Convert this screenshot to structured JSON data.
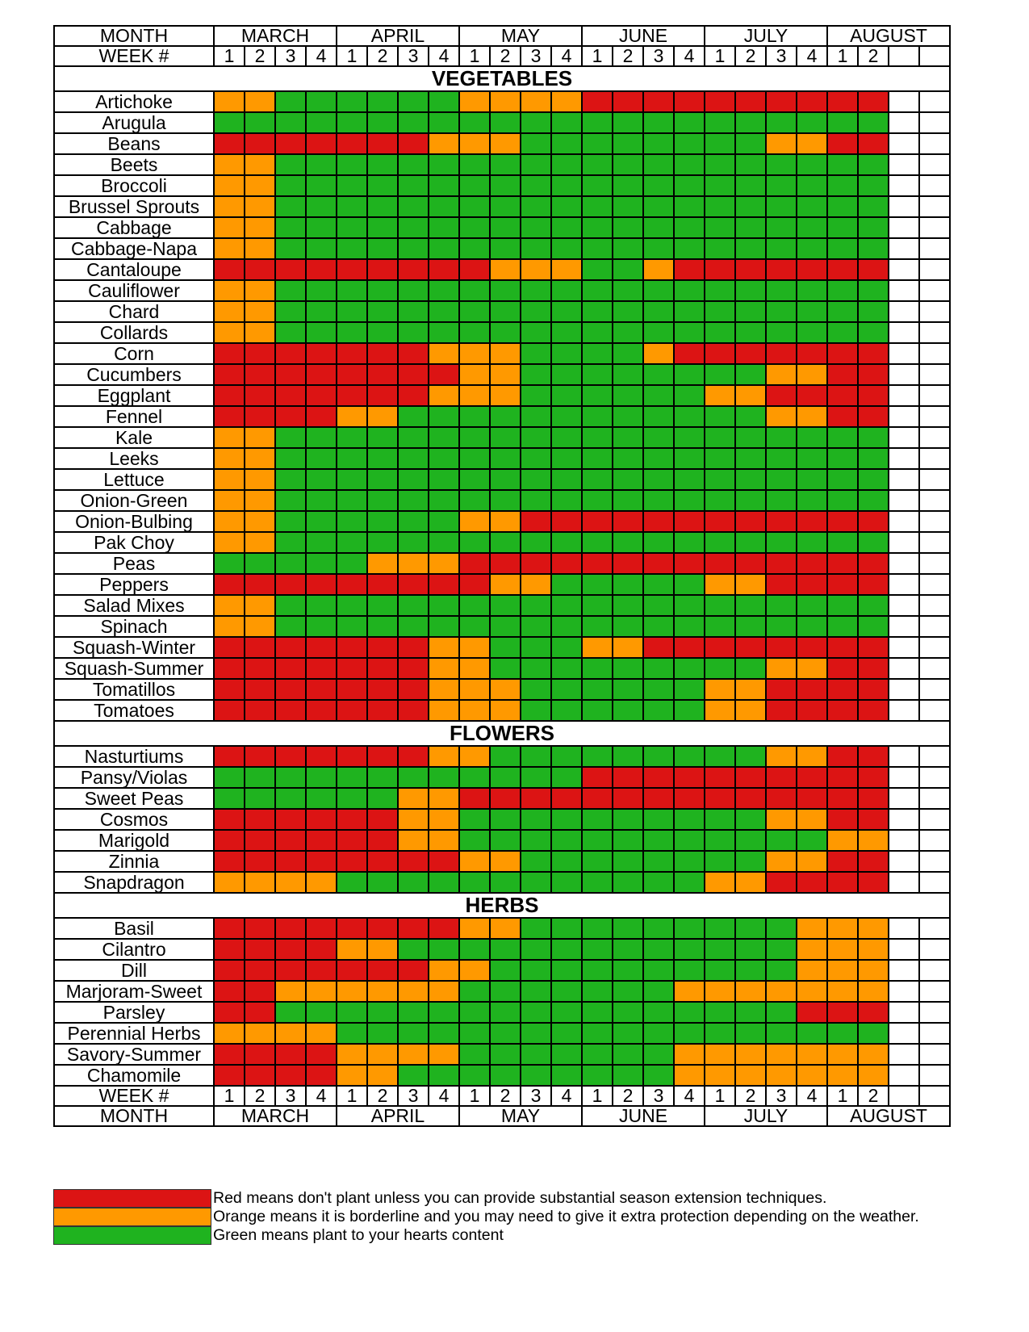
{
  "header": {
    "month_label": "MONTH",
    "week_label": "WEEK #",
    "months": [
      "MARCH",
      "APRIL",
      "MAY",
      "JUNE",
      "JULY",
      "AUGUST"
    ],
    "month_spans": [
      4,
      4,
      4,
      4,
      4,
      4
    ],
    "weeks": [
      "1",
      "2",
      "3",
      "4",
      "1",
      "2",
      "3",
      "4",
      "1",
      "2",
      "3",
      "4",
      "1",
      "2",
      "3",
      "4",
      "1",
      "2",
      "3",
      "4",
      "1",
      "2",
      "",
      ""
    ]
  },
  "colors": {
    "R": "#dc1414",
    "O": "#ff9900",
    "G": "#1fb31f",
    "W": "#ffffff"
  },
  "sections": [
    {
      "title": "VEGETABLES",
      "rows": [
        {
          "name": "Artichoke",
          "cells": "OOGGGGGGOOOORRRRRRRRRRWW"
        },
        {
          "name": "Arugula",
          "cells": "GGGGGGGGGGGGGGGGGGGGGGWW"
        },
        {
          "name": "Beans",
          "cells": "RRRRRRROOOGGGGGGGGOORRWW"
        },
        {
          "name": "Beets",
          "cells": "OOGGGGGGGGGGGGGGGGGGGGWW"
        },
        {
          "name": "Broccoli",
          "cells": "OOGGGGGGGGGGGGGGGGGGGGWW"
        },
        {
          "name": "Brussel Sprouts",
          "cells": "OOGGGGGGGGGGGGGGGGGGGGWW"
        },
        {
          "name": "Cabbage",
          "cells": "OOGGGGGGGGGGGGGGGGGGGGWW"
        },
        {
          "name": "Cabbage-Napa",
          "cells": "OOGGGGGGGGGGGGGGGGGGGGWW"
        },
        {
          "name": "Cantaloupe",
          "cells": "RRRRRRRRROOOGGORRRRRRRWW"
        },
        {
          "name": "Cauliflower",
          "cells": "OOGGGGGGGGGGGGGGGGGGGGWW"
        },
        {
          "name": "Chard",
          "cells": "OOGGGGGGGGGGGGGGGGGGGGWW"
        },
        {
          "name": "Collards",
          "cells": "OOGGGGGGGGGGGGGGGGGGGGWW"
        },
        {
          "name": "Corn",
          "cells": "RRRRRRROOOGGGGORRRRRRRWW"
        },
        {
          "name": "Cucumbers",
          "cells": "RRRRRRRROOGGGGGGGGOORRWW"
        },
        {
          "name": "Eggplant",
          "cells": "RRRRRRROOOGGGGGGOORRRRWW"
        },
        {
          "name": "Fennel",
          "cells": "RRRROOGGGGGGGGGGGGOORRWW"
        },
        {
          "name": "Kale",
          "cells": "OOGGGGGGGGGGGGGGGGGGGGWW"
        },
        {
          "name": "Leeks",
          "cells": "OOGGGGGGGGGGGGGGGGGGGGWW"
        },
        {
          "name": "Lettuce",
          "cells": "OOGGGGGGGGGGGGGGGGGGGGWW"
        },
        {
          "name": "Onion-Green",
          "cells": "OOGGGGGGGGGGGGGGGGGGGGWW"
        },
        {
          "name": "Onion-Bulbing",
          "cells": "OOGGGGGGOORRRRRRRRRRRRWW"
        },
        {
          "name": "Pak Choy",
          "cells": "OOGGGGGGGGGGGGGGGGGGGGWW"
        },
        {
          "name": "Peas",
          "cells": "GGGGGOOORRRRRRRRRRRRRRWW"
        },
        {
          "name": "Peppers",
          "cells": "RRRRRRRRROOGGGGGOORRRRWW"
        },
        {
          "name": "Salad Mixes",
          "cells": "OOGGGGGGGGGGGGGGGGGGGGWW"
        },
        {
          "name": "Spinach",
          "cells": "OOGGGGGGGGGGGGGGGGGGGGWW"
        },
        {
          "name": "Squash-Winter",
          "cells": "RRRRRRROOGGGOORRRRRRRRWW"
        },
        {
          "name": "Squash-Summer",
          "cells": "RRRRRRROOGGGGGGGGGOORRWW"
        },
        {
          "name": "Tomatillos",
          "cells": "RRRRRRROOOGGGGGGOORRRRWW"
        },
        {
          "name": "Tomatoes",
          "cells": "RRRRRRROOOGGGGGGOORRRRWW"
        }
      ]
    },
    {
      "title": "FLOWERS",
      "rows": [
        {
          "name": "Nasturtiums",
          "cells": "RRRRRRROOGGGGGGGGGOORRWW"
        },
        {
          "name": "Pansy/Violas",
          "cells": "GGGGGGGGGGGGRRRRRRRRRRWW"
        },
        {
          "name": "Sweet Peas",
          "cells": "GGGGGGOORRRRRRRRRRRRRRWW"
        },
        {
          "name": "Cosmos",
          "cells": "RRRRRROOGGGGGGGGGGOORRWW"
        },
        {
          "name": "Marigold",
          "cells": "RRRRRROOGGGGGGGGGGGGOOWW"
        },
        {
          "name": "Zinnia",
          "cells": "RRRRRRRROOGGGGGGGGOORRWW"
        },
        {
          "name": "Snapdragon",
          "cells": "OOOOGGGGGGGGGGGGOORRRRWW"
        }
      ]
    },
    {
      "title": "HERBS",
      "rows": [
        {
          "name": "Basil",
          "cells": "RRRRRRRROOGGGGGGGGGOOOWW"
        },
        {
          "name": "Cilantro",
          "cells": "RRRROOGGGGGGGGGGGGGOOOWW"
        },
        {
          "name": "Dill",
          "cells": "RRRRRRROOGGGGGGGGGGOOOWW"
        },
        {
          "name": "Marjoram-Sweet",
          "cells": "RROOOOOOGGGGGGGOOOOOOOWW"
        },
        {
          "name": "Parsley",
          "cells": "RRGGGGGGGGGGGGGGGGGRRRWW"
        },
        {
          "name": "Perennial Herbs",
          "cells": "OOOOGGGGGGGGGGGGGGGGGGWW"
        },
        {
          "name": "Savory-Summer",
          "cells": "RRRROOOOGGGGGGGOOOOOOOWW"
        },
        {
          "name": "Chamomile",
          "cells": "RRRROOGGGGGGGGGOOOOOOOWW"
        }
      ]
    }
  ],
  "legend": [
    {
      "color": "#dc1414",
      "text": "Red means don't plant unless you can provide substantial season extension techniques."
    },
    {
      "color": "#ff9900",
      "text": "Orange means it is borderline and you may need to give it extra protection depending on the weather."
    },
    {
      "color": "#1fb31f",
      "text": "Green means plant to your hearts content"
    }
  ]
}
